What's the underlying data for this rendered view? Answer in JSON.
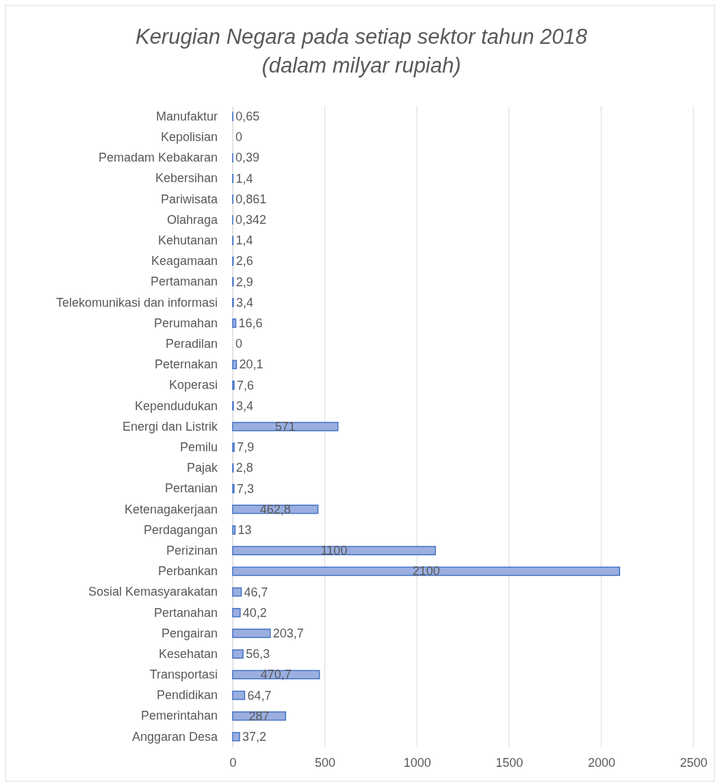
{
  "chart_data": {
    "type": "bar",
    "orientation": "horizontal",
    "title": "Kerugian Negara pada setiap sektor tahun 2018 (dalam milyar rupiah)",
    "categories": [
      "Manufaktur",
      "Kepolisian",
      "Pemadam Kebakaran",
      "Kebersihan",
      "Pariwisata",
      "Olahraga",
      "Kehutanan",
      "Keagamaan",
      "Pertamanan",
      "Telekomunikasi dan informasi",
      "Perumahan",
      "Peradilan",
      "Peternakan",
      "Koperasi",
      "Kependudukan",
      "Energi dan Listrik",
      "Pemilu",
      "Pajak",
      "Pertanian",
      "Ketenagakerjaan",
      "Perdagangan",
      "Perizinan",
      "Perbankan",
      "Sosial Kemasyarakatan",
      "Pertanahan",
      "Pengairan",
      "Kesehatan",
      "Transportasi",
      "Pendidikan",
      "Pemerintahan",
      "Anggaran Desa"
    ],
    "values": [
      0.65,
      0,
      0.39,
      1.4,
      0.861,
      0.342,
      1.4,
      2.6,
      2.9,
      3.4,
      16.6,
      0,
      20.1,
      7.6,
      3.4,
      571,
      7.9,
      2.8,
      7.3,
      462.8,
      13,
      1100,
      2100,
      46.7,
      40.2,
      203.7,
      56.3,
      470.7,
      64.7,
      287,
      37.2
    ],
    "value_labels": [
      "0,65",
      "0",
      "0,39",
      "1,4",
      "0,861",
      "0,342",
      "1,4",
      "2,6",
      "2,9",
      "3,4",
      "16,6",
      "0",
      "20,1",
      "7,6",
      "3,4",
      "571",
      "7,9",
      "2,8",
      "7,3",
      "462,8",
      "13",
      "1100",
      "2100",
      "46,7",
      "40,2",
      "203,7",
      "56,3",
      "470,7",
      "64,7",
      "287",
      "37,2"
    ],
    "color": "#9aaee0",
    "xlim": [
      0,
      2500
    ],
    "xticks": [
      0,
      500,
      1000,
      1500,
      2000,
      2500
    ],
    "grid": "x"
  }
}
